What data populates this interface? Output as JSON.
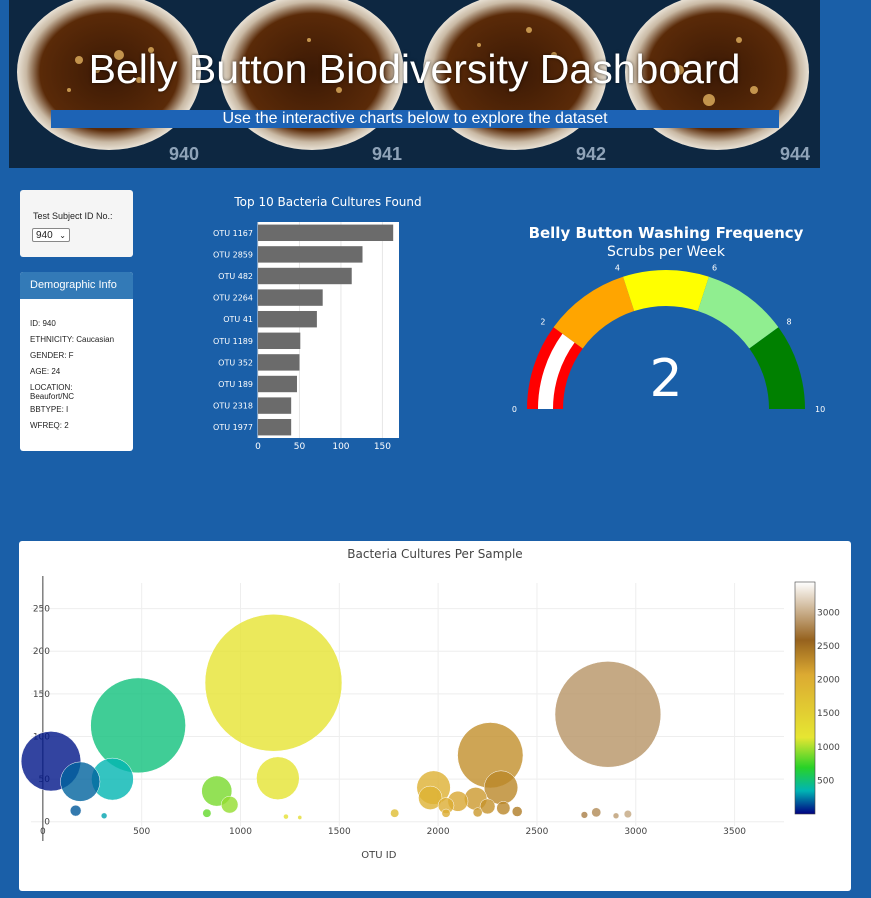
{
  "header": {
    "title": "Belly Button Biodiversity Dashboard",
    "subtitle": "Use the interactive charts below to explore the dataset",
    "plate_labels": [
      "940",
      "941",
      "942",
      "944"
    ]
  },
  "selector": {
    "label": "Test Subject ID No.:",
    "selected": "940",
    "chevron_icon": "chevron-down-icon"
  },
  "demographic": {
    "heading": "Demographic Info",
    "fields": [
      "ID: 940",
      "ETHNICITY: Caucasian",
      "GENDER: F",
      "AGE: 24",
      "LOCATION: Beaufort/NC",
      "BBTYPE: I",
      "WFREQ: 2"
    ]
  },
  "chart_data": [
    {
      "type": "bar",
      "orientation": "horizontal",
      "title": "Top 10 Bacteria Cultures Found",
      "categories": [
        "OTU 1167",
        "OTU 2859",
        "OTU 482",
        "OTU 2264",
        "OTU 41",
        "OTU 1189",
        "OTU 352",
        "OTU 189",
        "OTU 2318",
        "OTU 1977"
      ],
      "values": [
        163,
        126,
        113,
        78,
        71,
        51,
        50,
        47,
        40,
        40
      ],
      "xlim": [
        0,
        170
      ],
      "xticks": [
        0,
        50,
        100,
        150
      ],
      "bar_color": "#6b6b6b"
    },
    {
      "type": "gauge",
      "title": "Belly Button Washing Frequency",
      "subtitle": "Scrubs per Week",
      "value": 2,
      "display_value": "2",
      "range": [
        0,
        10
      ],
      "ticks": [
        "0",
        "2",
        "4",
        "6",
        "8",
        "10"
      ],
      "bands": [
        {
          "from": 0,
          "to": 2,
          "color": "#ff0000"
        },
        {
          "from": 2,
          "to": 4,
          "color": "#ffa500"
        },
        {
          "from": 4,
          "to": 6,
          "color": "#ffff00"
        },
        {
          "from": 6,
          "to": 8,
          "color": "#90ee90"
        },
        {
          "from": 8,
          "to": 10,
          "color": "#008000"
        }
      ]
    },
    {
      "type": "scatter",
      "variant": "bubble",
      "title": "Bacteria Cultures Per Sample",
      "xlabel": "OTU ID",
      "xlim": [
        -60,
        3750
      ],
      "ylim": [
        -5,
        280
      ],
      "xticks": [
        0,
        500,
        1000,
        1500,
        2000,
        2500,
        3000,
        3500
      ],
      "yticks": [
        0,
        50,
        100,
        150,
        200,
        250
      ],
      "colorbar": {
        "ticks": [
          "500",
          "1000",
          "1500",
          "2000",
          "2500",
          "3000"
        ],
        "range": [
          0,
          3450
        ]
      },
      "points": [
        {
          "x": 41,
          "y": 71
        },
        {
          "x": 189,
          "y": 47
        },
        {
          "x": 352,
          "y": 50
        },
        {
          "x": 482,
          "y": 113
        },
        {
          "x": 1167,
          "y": 163
        },
        {
          "x": 1189,
          "y": 51
        },
        {
          "x": 880,
          "y": 36
        },
        {
          "x": 945,
          "y": 20
        },
        {
          "x": 2264,
          "y": 78
        },
        {
          "x": 2318,
          "y": 40
        },
        {
          "x": 1977,
          "y": 40
        },
        {
          "x": 2859,
          "y": 126
        },
        {
          "x": 1960,
          "y": 28
        },
        {
          "x": 2040,
          "y": 19
        },
        {
          "x": 2100,
          "y": 24
        },
        {
          "x": 2190,
          "y": 27
        },
        {
          "x": 2250,
          "y": 18
        },
        {
          "x": 2330,
          "y": 16
        },
        {
          "x": 2400,
          "y": 12
        },
        {
          "x": 1780,
          "y": 10
        },
        {
          "x": 2040,
          "y": 10
        },
        {
          "x": 2200,
          "y": 11
        },
        {
          "x": 2740,
          "y": 8
        },
        {
          "x": 2800,
          "y": 11
        },
        {
          "x": 2900,
          "y": 7
        },
        {
          "x": 2960,
          "y": 9
        },
        {
          "x": 166,
          "y": 13
        },
        {
          "x": 310,
          "y": 7
        },
        {
          "x": 830,
          "y": 10
        },
        {
          "x": 1230,
          "y": 6
        },
        {
          "x": 1300,
          "y": 5
        }
      ]
    }
  ]
}
